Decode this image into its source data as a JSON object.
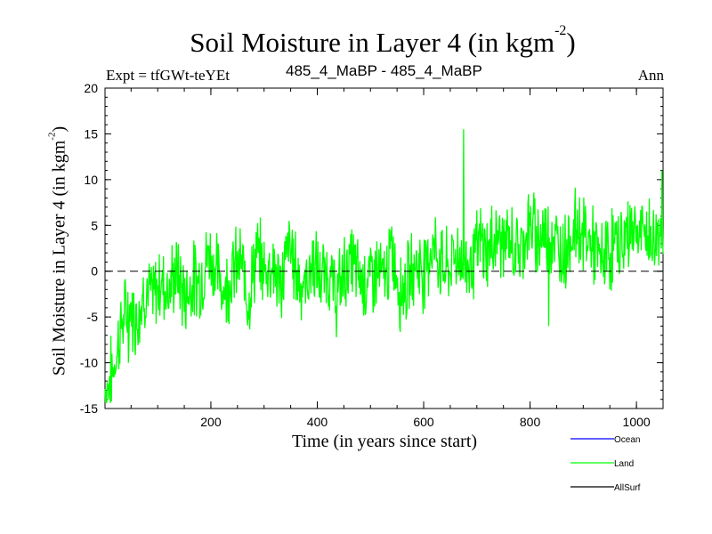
{
  "header": {
    "title": "Soil Moisture in Layer 4 (in kgm",
    "title_sup": "-2",
    "title_end": ")",
    "experiment": "Expt = tfGWt-teYEt",
    "comparison": "485_4_MaBP - 485_4_MaBP",
    "period": "Ann"
  },
  "chart_data": {
    "type": "line",
    "title": "Soil Moisture in Layer 4 (in kgm-2)",
    "xlabel": "Time (in years since start)",
    "ylabel": "Soil Moisture in Layer 4 (in kgm-2)",
    "ylabel_main": "Soil Moisture in Layer 4 (in kgm",
    "ylabel_sup": "-2",
    "ylabel_end": ")",
    "xlim": [
      1,
      1050
    ],
    "ylim": [
      -15,
      20
    ],
    "xticks": [
      200,
      400,
      600,
      800,
      1000
    ],
    "xtick_labels": [
      "200",
      "400",
      "600",
      "800",
      "1000"
    ],
    "yticks": [
      -15,
      -10,
      -5,
      0,
      5,
      10,
      15,
      20
    ],
    "ytick_labels": [
      "-15",
      "-10",
      "-5",
      "0",
      "5",
      "10",
      "15",
      "20"
    ],
    "zero_line": 0,
    "legend_position": "bottom-right",
    "series": [
      {
        "name": "Ocean",
        "color": "#0000ff",
        "values": []
      },
      {
        "name": "Land",
        "color": "#00ff00",
        "x_step": 15,
        "x_start": 1,
        "values": [
          -13,
          -11,
          -6,
          -4,
          -5,
          -2,
          -3,
          -1,
          -2,
          0,
          -3,
          -1,
          -1,
          2,
          0,
          -2,
          0,
          1,
          -3,
          2,
          0,
          1,
          -2,
          3,
          0,
          -2,
          1,
          -1,
          0,
          -3,
          0,
          1,
          -1,
          -1,
          0,
          -1,
          2,
          -2,
          -1,
          1,
          0,
          3,
          1,
          0,
          2,
          1,
          1,
          3,
          2,
          4,
          3,
          3,
          2,
          5,
          4,
          4,
          4,
          2,
          3,
          5,
          4,
          3,
          1,
          2,
          3,
          3,
          5,
          4,
          4,
          3,
          6
        ]
      },
      {
        "name": "AllSurf",
        "color": "#000000",
        "values": []
      }
    ],
    "extremes": [
      {
        "x": 8,
        "y": -14
      },
      {
        "x": 45,
        "y": -10
      },
      {
        "x": 675,
        "y": 15.5
      },
      {
        "x": 835,
        "y": -6
      },
      {
        "x": 1048,
        "y": 11
      }
    ]
  },
  "legend": {
    "items": [
      {
        "label": "Ocean",
        "color": "#0000ff"
      },
      {
        "label": "Land",
        "color": "#00ff00"
      },
      {
        "label": "AllSurf",
        "color": "#000000"
      }
    ]
  }
}
